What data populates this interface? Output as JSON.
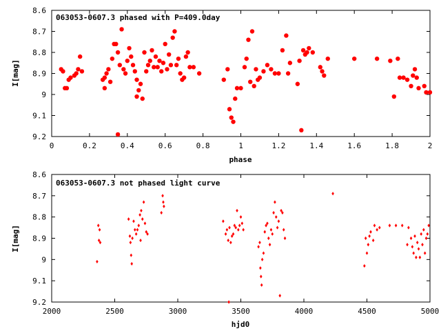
{
  "colors": {
    "series": "#ff0000",
    "axes": "#000000",
    "background": "#ffffff"
  },
  "chart_data": [
    {
      "type": "scatter",
      "title": "063053-0607.3 phased with P=409.0day",
      "xlabel": "phase",
      "ylabel": "I[mag]",
      "xlim": [
        0,
        2
      ],
      "ylim": [
        8.6,
        9.2
      ],
      "y_inverted": true,
      "grid": false,
      "legend": "none",
      "marker": "filled-circle-large",
      "x_ticks": [
        "0",
        "0.2",
        "0.4",
        "0.6",
        "0.8",
        "1",
        "1.2",
        "1.4",
        "1.6",
        "1.8",
        "2"
      ],
      "y_ticks": [
        "8.6",
        "8.7",
        "8.8",
        "8.9",
        "9",
        "9.1",
        "9.2"
      ],
      "points": [
        [
          0.05,
          8.88
        ],
        [
          0.06,
          8.89
        ],
        [
          0.07,
          8.97
        ],
        [
          0.08,
          8.97
        ],
        [
          0.09,
          8.93
        ],
        [
          0.1,
          8.92
        ],
        [
          0.12,
          8.91
        ],
        [
          0.13,
          8.9
        ],
        [
          0.14,
          8.88
        ],
        [
          0.15,
          8.82
        ],
        [
          0.16,
          8.89
        ],
        [
          0.27,
          8.93
        ],
        [
          0.28,
          8.92
        ],
        [
          0.28,
          8.97
        ],
        [
          0.29,
          8.9
        ],
        [
          0.3,
          8.88
        ],
        [
          0.31,
          8.94
        ],
        [
          0.32,
          8.83
        ],
        [
          0.33,
          8.76
        ],
        [
          0.34,
          8.76
        ],
        [
          0.35,
          8.8
        ],
        [
          0.35,
          9.19
        ],
        [
          0.36,
          8.86
        ],
        [
          0.37,
          8.69
        ],
        [
          0.38,
          8.88
        ],
        [
          0.39,
          8.9
        ],
        [
          0.4,
          8.84
        ],
        [
          0.41,
          8.78
        ],
        [
          0.42,
          8.82
        ],
        [
          0.43,
          8.86
        ],
        [
          0.44,
          8.89
        ],
        [
          0.45,
          8.93
        ],
        [
          0.45,
          9.01
        ],
        [
          0.46,
          8.98
        ],
        [
          0.47,
          8.95
        ],
        [
          0.48,
          9.02
        ],
        [
          0.49,
          8.8
        ],
        [
          0.5,
          8.89
        ],
        [
          0.51,
          8.86
        ],
        [
          0.52,
          8.84
        ],
        [
          0.53,
          8.79
        ],
        [
          0.54,
          8.87
        ],
        [
          0.55,
          8.82
        ],
        [
          0.56,
          8.87
        ],
        [
          0.57,
          8.84
        ],
        [
          0.58,
          8.89
        ],
        [
          0.59,
          8.85
        ],
        [
          0.6,
          8.76
        ],
        [
          0.61,
          8.88
        ],
        [
          0.62,
          8.81
        ],
        [
          0.63,
          8.86
        ],
        [
          0.64,
          8.73
        ],
        [
          0.65,
          8.7
        ],
        [
          0.66,
          8.86
        ],
        [
          0.67,
          8.83
        ],
        [
          0.68,
          8.9
        ],
        [
          0.69,
          8.93
        ],
        [
          0.7,
          8.92
        ],
        [
          0.71,
          8.82
        ],
        [
          0.72,
          8.8
        ],
        [
          0.73,
          8.87
        ],
        [
          0.75,
          8.87
        ],
        [
          0.78,
          8.9
        ],
        [
          0.91,
          8.93
        ],
        [
          0.93,
          8.88
        ],
        [
          0.94,
          9.07
        ],
        [
          0.95,
          9.11
        ],
        [
          0.96,
          9.13
        ],
        [
          0.97,
          9.02
        ],
        [
          0.98,
          8.97
        ],
        [
          1.0,
          8.97
        ],
        [
          1.02,
          8.87
        ],
        [
          1.03,
          8.83
        ],
        [
          1.04,
          8.74
        ],
        [
          1.05,
          8.94
        ],
        [
          1.06,
          8.7
        ],
        [
          1.07,
          8.96
        ],
        [
          1.08,
          8.88
        ],
        [
          1.09,
          8.93
        ],
        [
          1.1,
          8.92
        ],
        [
          1.12,
          8.89
        ],
        [
          1.14,
          8.86
        ],
        [
          1.16,
          8.88
        ],
        [
          1.18,
          8.9
        ],
        [
          1.2,
          8.9
        ],
        [
          1.22,
          8.79
        ],
        [
          1.24,
          8.72
        ],
        [
          1.25,
          8.9
        ],
        [
          1.26,
          8.85
        ],
        [
          1.3,
          8.95
        ],
        [
          1.31,
          8.84
        ],
        [
          1.32,
          9.17
        ],
        [
          1.33,
          8.79
        ],
        [
          1.34,
          8.81
        ],
        [
          1.35,
          8.8
        ],
        [
          1.36,
          8.78
        ],
        [
          1.38,
          8.8
        ],
        [
          1.42,
          8.87
        ],
        [
          1.43,
          8.89
        ],
        [
          1.44,
          8.91
        ],
        [
          1.46,
          8.83
        ],
        [
          1.6,
          8.83
        ],
        [
          1.72,
          8.83
        ],
        [
          1.79,
          8.84
        ],
        [
          1.81,
          9.01
        ],
        [
          1.83,
          8.83
        ],
        [
          1.84,
          8.92
        ],
        [
          1.86,
          8.92
        ],
        [
          1.88,
          8.93
        ],
        [
          1.9,
          8.96
        ],
        [
          1.91,
          8.91
        ],
        [
          1.92,
          8.88
        ],
        [
          1.93,
          8.92
        ],
        [
          1.94,
          8.97
        ],
        [
          1.97,
          8.96
        ],
        [
          1.98,
          8.99
        ],
        [
          2.0,
          8.99
        ]
      ]
    },
    {
      "type": "scatter",
      "title": "063053-0607.3 not phased light curve",
      "xlabel": "hjd0",
      "ylabel": "I[mag]",
      "xlim": [
        2000,
        5000
      ],
      "ylim": [
        8.6,
        9.2
      ],
      "y_inverted": true,
      "grid": false,
      "legend": "none",
      "marker": "filled-diamond-small",
      "x_ticks": [
        "2000",
        "2500",
        "3000",
        "3500",
        "4000",
        "4500",
        "5000"
      ],
      "y_ticks": [
        "8.6",
        "8.7",
        "8.8",
        "8.9",
        "9",
        "9.1",
        "9.2"
      ],
      "points": [
        [
          2360,
          9.01
        ],
        [
          2370,
          8.84
        ],
        [
          2375,
          8.91
        ],
        [
          2380,
          8.86
        ],
        [
          2385,
          8.92
        ],
        [
          2610,
          8.81
        ],
        [
          2620,
          8.89
        ],
        [
          2625,
          8.92
        ],
        [
          2630,
          8.98
        ],
        [
          2635,
          9.02
        ],
        [
          2640,
          8.9
        ],
        [
          2650,
          8.82
        ],
        [
          2660,
          8.86
        ],
        [
          2670,
          8.88
        ],
        [
          2680,
          8.86
        ],
        [
          2690,
          8.84
        ],
        [
          2700,
          8.79
        ],
        [
          2705,
          8.91
        ],
        [
          2710,
          8.77
        ],
        [
          2720,
          8.81
        ],
        [
          2730,
          8.73
        ],
        [
          2740,
          8.83
        ],
        [
          2750,
          8.87
        ],
        [
          2760,
          8.88
        ],
        [
          2870,
          8.78
        ],
        [
          2880,
          8.7
        ],
        [
          2885,
          8.73
        ],
        [
          2890,
          8.75
        ],
        [
          3360,
          8.82
        ],
        [
          3380,
          8.88
        ],
        [
          3390,
          8.86
        ],
        [
          3400,
          8.91
        ],
        [
          3410,
          8.85
        ],
        [
          3420,
          8.92
        ],
        [
          3430,
          8.89
        ],
        [
          3440,
          8.88
        ],
        [
          3450,
          8.84
        ],
        [
          3460,
          8.85
        ],
        [
          3470,
          8.77
        ],
        [
          3480,
          8.86
        ],
        [
          3490,
          8.84
        ],
        [
          3500,
          8.8
        ],
        [
          3510,
          8.83
        ],
        [
          3520,
          8.86
        ],
        [
          3405,
          9.2
        ],
        [
          3640,
          8.94
        ],
        [
          3650,
          8.92
        ],
        [
          3655,
          9.04
        ],
        [
          3660,
          9.08
        ],
        [
          3665,
          9.12
        ],
        [
          3670,
          9.0
        ],
        [
          3680,
          8.97
        ],
        [
          3690,
          8.87
        ],
        [
          3700,
          8.84
        ],
        [
          3710,
          8.83
        ],
        [
          3720,
          8.9
        ],
        [
          3730,
          8.93
        ],
        [
          3740,
          8.86
        ],
        [
          3750,
          8.88
        ],
        [
          3760,
          8.78
        ],
        [
          3770,
          8.73
        ],
        [
          3780,
          8.8
        ],
        [
          3790,
          8.85
        ],
        [
          3800,
          8.82
        ],
        [
          3810,
          9.17
        ],
        [
          3820,
          8.77
        ],
        [
          3830,
          8.78
        ],
        [
          3840,
          8.86
        ],
        [
          3850,
          8.9
        ],
        [
          4230,
          8.69
        ],
        [
          4480,
          9.03
        ],
        [
          4490,
          8.9
        ],
        [
          4500,
          8.97
        ],
        [
          4510,
          8.93
        ],
        [
          4520,
          8.89
        ],
        [
          4530,
          8.87
        ],
        [
          4550,
          8.91
        ],
        [
          4560,
          8.84
        ],
        [
          4580,
          8.86
        ],
        [
          4600,
          8.85
        ],
        [
          4680,
          8.84
        ],
        [
          4730,
          8.84
        ],
        [
          4780,
          8.84
        ],
        [
          4820,
          8.93
        ],
        [
          4830,
          8.85
        ],
        [
          4850,
          8.9
        ],
        [
          4860,
          8.94
        ],
        [
          4870,
          8.97
        ],
        [
          4880,
          8.89
        ],
        [
          4890,
          8.99
        ],
        [
          4900,
          8.92
        ],
        [
          4910,
          8.95
        ],
        [
          4920,
          8.99
        ],
        [
          4930,
          8.88
        ],
        [
          4940,
          8.93
        ],
        [
          4950,
          8.86
        ],
        [
          4960,
          8.97
        ],
        [
          4970,
          8.9
        ],
        [
          4980,
          8.88
        ],
        [
          4990,
          8.84
        ]
      ]
    }
  ]
}
